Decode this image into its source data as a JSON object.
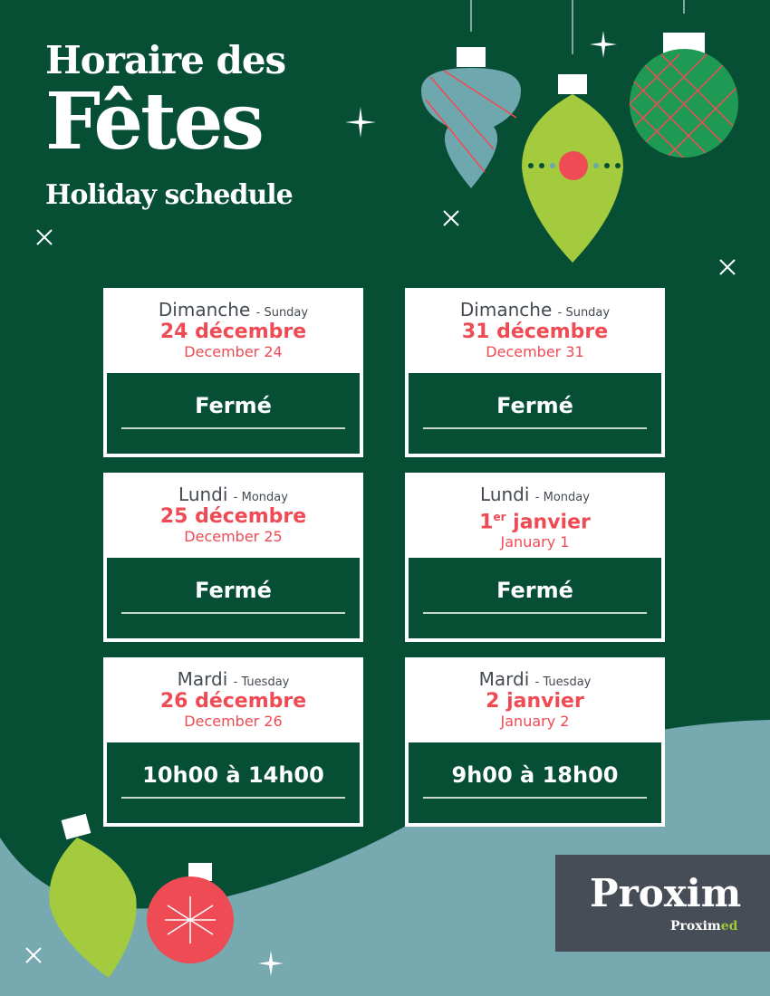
{
  "header": {
    "line1": "Horaire des",
    "line2": "Fêtes",
    "line3": "Holiday schedule"
  },
  "days": [
    {
      "day": "Dimanche",
      "day_en": "- Sunday",
      "date_fr": "24 décembre",
      "date_en": "December 24",
      "hours": "Fermé"
    },
    {
      "day": "Dimanche",
      "day_en": "- Sunday",
      "date_fr": "31 décembre",
      "date_en": "December 31",
      "hours": "Fermé"
    },
    {
      "day": "Lundi",
      "day_en": "- Monday",
      "date_fr": "25 décembre",
      "date_en": "December 25",
      "hours": "Fermé"
    },
    {
      "day": "Lundi",
      "day_en": "- Monday",
      "date_fr": "1",
      "date_fr_sup": "er",
      "date_fr_rest": " janvier",
      "date_en": "January 1",
      "hours": "Fermé"
    },
    {
      "day": "Mardi",
      "day_en": "- Tuesday",
      "date_fr": "26 décembre",
      "date_en": "December 26",
      "hours": "10h00 à 14h00"
    },
    {
      "day": "Mardi",
      "day_en": "- Tuesday",
      "date_fr": "2 janvier",
      "date_en": "January 2",
      "hours": "9h00 à 18h00"
    }
  ],
  "logo": {
    "main": "Proxim",
    "sub_a": "Proxim",
    "sub_b": "ed"
  },
  "colors": {
    "green": "#064f35",
    "red": "#ef4b55",
    "teal": "#76a9b0",
    "lime": "#a3cb3d"
  }
}
